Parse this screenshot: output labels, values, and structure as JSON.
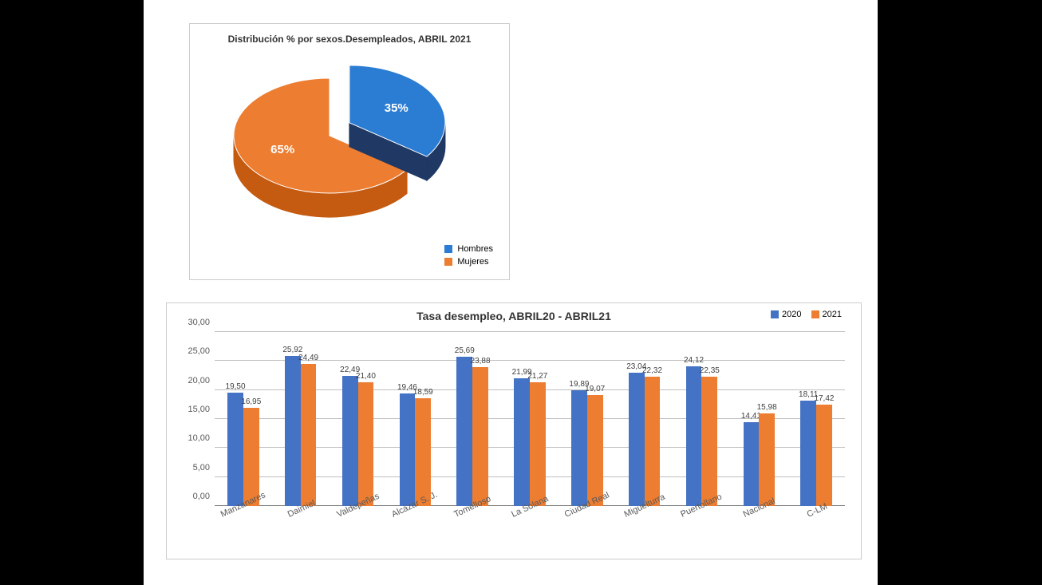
{
  "pie_chart": {
    "type": "pie",
    "title": "Distribución % por sexos.Desempleados, ABRIL 2021",
    "title_fontsize": 12,
    "background_color": "#ffffff",
    "border_color": "#cccccc",
    "slices": [
      {
        "label": "Hombres",
        "value": 35,
        "display": "35%",
        "color": "#2b7cd3",
        "side_color": "#1f3864",
        "exploded": true
      },
      {
        "label": "Mujeres",
        "value": 65,
        "display": "65%",
        "color": "#ed7d31",
        "side_color": "#c55a11",
        "exploded": false
      }
    ],
    "label_fontsize": 15,
    "label_color": "#ffffff",
    "legend_fontsize": 11,
    "legend_position": "bottom-right"
  },
  "bar_chart": {
    "type": "bar",
    "title": "Tasa desempleo, ABRIL20 - ABRIL21",
    "title_fontsize": 14,
    "background_color": "#ffffff",
    "border_color": "#cccccc",
    "grid_color": "#bfbfbf",
    "axis_label_color": "#595959",
    "categories": [
      "Manzanares",
      "Daimiel",
      "Valdepeñas",
      "Alcázar S. J.",
      "Tomelloso",
      "La Solana",
      "Ciudad Real",
      "Miguelturra",
      "Puertollano",
      "Nacional",
      "C-LM"
    ],
    "series": [
      {
        "name": "2020",
        "color": "#4472c4",
        "values": [
          19.5,
          25.92,
          22.49,
          19.46,
          25.69,
          21.99,
          19.89,
          23.04,
          24.12,
          14.41,
          18.11
        ]
      },
      {
        "name": "2021",
        "color": "#ed7d31",
        "values": [
          16.95,
          24.49,
          21.4,
          18.59,
          23.88,
          21.27,
          19.07,
          22.32,
          22.35,
          15.98,
          17.42
        ]
      }
    ],
    "ylim": [
      0,
      30
    ],
    "ytick_step": 5,
    "ytick_decimals": 2,
    "value_label_fontsize": 10,
    "value_label_decimals": 2,
    "axis_label_fontsize": 11,
    "xtick_rotation_deg": -25,
    "bar_fill_ratio": 0.55,
    "legend_fontsize": 11,
    "legend_position": "top-right"
  }
}
